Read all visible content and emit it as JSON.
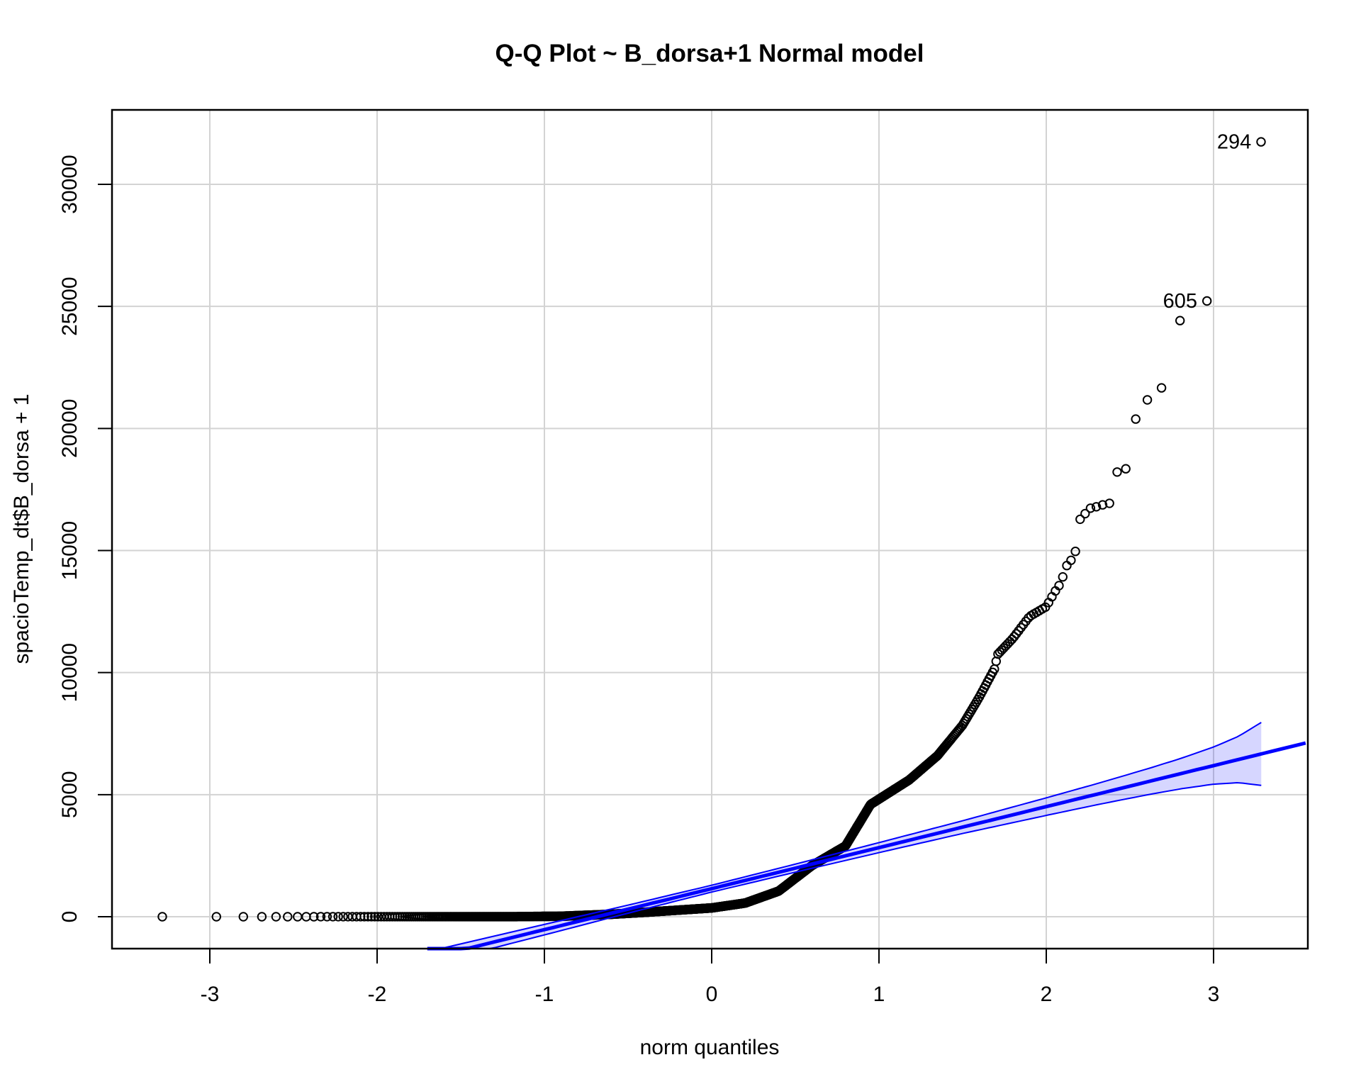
{
  "chart_data": {
    "type": "scatter",
    "subtype": "qq-plot-with-normal-reference",
    "title": "Q-Q Plot ~ B_dorsa+1 Normal model",
    "xlabel": "norm quantiles",
    "ylabel": "spacioTemp_dt$B_dorsa + 1",
    "x_ticks": [
      -3,
      -2,
      -1,
      0,
      1,
      2,
      3
    ],
    "y_ticks": [
      0,
      5000,
      10000,
      15000,
      20000,
      25000,
      30000
    ],
    "xlim": [
      -3.58,
      3.56
    ],
    "ylim": [
      -1310,
      33060
    ],
    "grid": true,
    "legend": "none",
    "n_points": 977,
    "point_rule": "q_i = qnorm((i-0.5)/n), value_i = interp(empirical_curve_anchors, q_i)",
    "empirical_curve_anchors": [
      [
        -3.3,
        1
      ],
      [
        -1.2,
        2
      ],
      [
        -0.9,
        20
      ],
      [
        -0.6,
        100
      ],
      [
        -0.4,
        180
      ],
      [
        -0.2,
        270
      ],
      [
        0.0,
        360
      ],
      [
        0.2,
        560
      ],
      [
        0.4,
        1050
      ],
      [
        0.6,
        2100
      ],
      [
        0.8,
        2900
      ],
      [
        0.95,
        4600
      ],
      [
        1.18,
        5600
      ],
      [
        1.35,
        6600
      ],
      [
        1.5,
        7850
      ],
      [
        1.6,
        9000
      ],
      [
        1.69,
        10150
      ],
      [
        1.71,
        10750
      ],
      [
        1.8,
        11400
      ],
      [
        1.9,
        12300
      ],
      [
        2.0,
        12700
      ],
      [
        2.05,
        13300
      ],
      [
        2.085,
        13650
      ],
      [
        2.123,
        14390
      ],
      [
        2.148,
        14600
      ],
      [
        2.174,
        14950
      ],
      [
        2.201,
        16270
      ],
      [
        2.231,
        16500
      ],
      [
        2.263,
        16730
      ],
      [
        2.298,
        16790
      ],
      [
        2.336,
        16870
      ],
      [
        2.378,
        16930
      ],
      [
        2.427,
        18300
      ],
      [
        2.478,
        18350
      ],
      [
        2.535,
        20400
      ],
      [
        2.604,
        21170
      ],
      [
        2.689,
        21660
      ],
      [
        2.8,
        24430
      ],
      [
        2.962,
        25230
      ],
      [
        3.285,
        31760
      ]
    ],
    "fit_line": {
      "intercept": 1150,
      "slope": 1680,
      "extends_to_xlim": true
    },
    "envelope": {
      "q_end": 3.285,
      "half_width_anchors": [
        [
          -1.75,
          275
        ],
        [
          -1.0,
          215
        ],
        [
          -0.5,
          165
        ],
        [
          0.0,
          140
        ],
        [
          0.5,
          165
        ],
        [
          1.0,
          205
        ],
        [
          1.5,
          260
        ],
        [
          2.0,
          360
        ],
        [
          2.3,
          430
        ],
        [
          2.6,
          530
        ],
        [
          2.8,
          620
        ],
        [
          3.0,
          760
        ],
        [
          3.15,
          950
        ],
        [
          3.285,
          1290
        ]
      ]
    },
    "labeled_points": [
      {
        "label": "294",
        "q": 3.285,
        "value": 31760
      },
      {
        "label": "605",
        "q": 2.962,
        "value": 25230
      }
    ],
    "colors": {
      "points": "#000000",
      "line": "#0000ff",
      "envelope_fill": "rgba(0,0,255,0.16)",
      "grid": "#d3d3d3",
      "border": "#000000",
      "background": "#ffffff"
    }
  }
}
